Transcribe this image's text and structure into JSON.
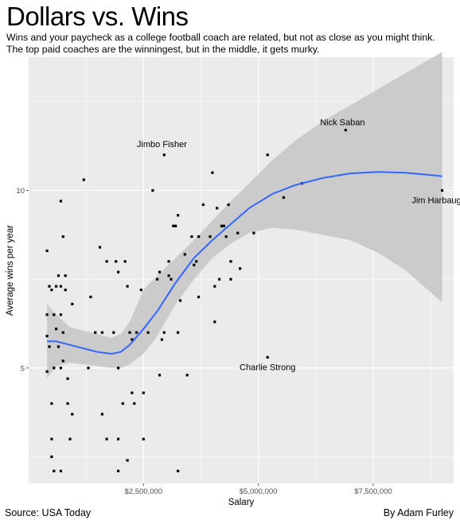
{
  "header": {
    "title": "Dollars vs. Wins",
    "subtitle_line1": "Wins and your paycheck as a college football coach are related, but not as close as you might think.",
    "subtitle_line2": "The top paid coaches are the winningest, but in the middle, it gets murky."
  },
  "footer": {
    "source": "Source: USA Today",
    "byline": "By Adam Furley"
  },
  "colors": {
    "panel": "#ebebeb",
    "grid": "#ffffff",
    "point": "#000000",
    "smooth_line": "#3366ff",
    "ribbon": "#c6c6c6"
  },
  "chart_data": {
    "type": "scatter",
    "xlabel": "Salary",
    "ylabel": "Average wins per year",
    "xlim": [
      0,
      9250000
    ],
    "ylim": [
      1.75,
      13.75
    ],
    "x_ticks": [
      2500000,
      5000000,
      7500000
    ],
    "x_tick_labels": [
      "$2,500,000",
      "$5,000,000",
      "$7,500,000"
    ],
    "y_ticks": [
      5,
      10
    ],
    "y_tick_labels": [
      "5",
      "10"
    ],
    "grid": true,
    "legend": "none",
    "annotations": [
      {
        "label": "Nick Saban",
        "x": 6900000,
        "y": 11.7
      },
      {
        "label": "Jimbo Fisher",
        "x": 2900000,
        "y": 11.0
      },
      {
        "label": "Jim Harbaugh",
        "x": 9000000,
        "y": 10.0
      },
      {
        "label": "Charlie Strong",
        "x": 5200000,
        "y": 5.3
      }
    ],
    "points": [
      {
        "x": 400000,
        "y": 8.3
      },
      {
        "x": 450000,
        "y": 7.3
      },
      {
        "x": 400000,
        "y": 6.5
      },
      {
        "x": 400000,
        "y": 5.9
      },
      {
        "x": 450000,
        "y": 5.6
      },
      {
        "x": 500000,
        "y": 7.2
      },
      {
        "x": 550000,
        "y": 6.5
      },
      {
        "x": 600000,
        "y": 7.3
      },
      {
        "x": 600000,
        "y": 6.1
      },
      {
        "x": 650000,
        "y": 7.6
      },
      {
        "x": 650000,
        "y": 5.6
      },
      {
        "x": 700000,
        "y": 9.7
      },
      {
        "x": 700000,
        "y": 7.3
      },
      {
        "x": 700000,
        "y": 6.5
      },
      {
        "x": 750000,
        "y": 8.7
      },
      {
        "x": 750000,
        "y": 6.0
      },
      {
        "x": 750000,
        "y": 5.2
      },
      {
        "x": 800000,
        "y": 7.6
      },
      {
        "x": 800000,
        "y": 7.2
      },
      {
        "x": 850000,
        "y": 4.7
      },
      {
        "x": 400000,
        "y": 4.9
      },
      {
        "x": 550000,
        "y": 5.0
      },
      {
        "x": 700000,
        "y": 5.0
      },
      {
        "x": 500000,
        "y": 4.0
      },
      {
        "x": 850000,
        "y": 4.0
      },
      {
        "x": 950000,
        "y": 3.7
      },
      {
        "x": 500000,
        "y": 3.0
      },
      {
        "x": 900000,
        "y": 3.0
      },
      {
        "x": 500000,
        "y": 2.5
      },
      {
        "x": 550000,
        "y": 2.1
      },
      {
        "x": 700000,
        "y": 2.1
      },
      {
        "x": 950000,
        "y": 6.8
      },
      {
        "x": 1200000,
        "y": 10.3
      },
      {
        "x": 1300000,
        "y": 5.0
      },
      {
        "x": 1350000,
        "y": 7.0
      },
      {
        "x": 1450000,
        "y": 6.0
      },
      {
        "x": 1550000,
        "y": 8.4
      },
      {
        "x": 1600000,
        "y": 6.0
      },
      {
        "x": 1600000,
        "y": 3.7
      },
      {
        "x": 1700000,
        "y": 8.0
      },
      {
        "x": 1700000,
        "y": 3.0
      },
      {
        "x": 1850000,
        "y": 6.0
      },
      {
        "x": 1900000,
        "y": 8.0
      },
      {
        "x": 1950000,
        "y": 7.7
      },
      {
        "x": 1950000,
        "y": 5.0
      },
      {
        "x": 1950000,
        "y": 3.0
      },
      {
        "x": 1950000,
        "y": 2.1
      },
      {
        "x": 2050000,
        "y": 4.0
      },
      {
        "x": 2100000,
        "y": 8.0
      },
      {
        "x": 2150000,
        "y": 7.3
      },
      {
        "x": 2150000,
        "y": 2.4
      },
      {
        "x": 2200000,
        "y": 6.0
      },
      {
        "x": 2250000,
        "y": 5.8
      },
      {
        "x": 2250000,
        "y": 4.3
      },
      {
        "x": 2300000,
        "y": 4.0
      },
      {
        "x": 2350000,
        "y": 6.0
      },
      {
        "x": 2450000,
        "y": 7.2
      },
      {
        "x": 2500000,
        "y": 4.3
      },
      {
        "x": 2500000,
        "y": 3.0
      },
      {
        "x": 2600000,
        "y": 6.0
      },
      {
        "x": 2700000,
        "y": 10.0
      },
      {
        "x": 2800000,
        "y": 7.5
      },
      {
        "x": 2850000,
        "y": 7.7
      },
      {
        "x": 2900000,
        "y": 5.8
      },
      {
        "x": 2850000,
        "y": 4.8
      },
      {
        "x": 2950000,
        "y": 11.0
      },
      {
        "x": 2950000,
        "y": 6.0
      },
      {
        "x": 3050000,
        "y": 8.0
      },
      {
        "x": 3050000,
        "y": 7.6
      },
      {
        "x": 3100000,
        "y": 7.5
      },
      {
        "x": 3150000,
        "y": 9.0
      },
      {
        "x": 3200000,
        "y": 9.0
      },
      {
        "x": 3250000,
        "y": 9.3
      },
      {
        "x": 3250000,
        "y": 6.0
      },
      {
        "x": 3300000,
        "y": 6.9
      },
      {
        "x": 3250000,
        "y": 2.1
      },
      {
        "x": 3400000,
        "y": 8.2
      },
      {
        "x": 3450000,
        "y": 4.8
      },
      {
        "x": 3550000,
        "y": 8.7
      },
      {
        "x": 3600000,
        "y": 7.9
      },
      {
        "x": 3650000,
        "y": 8.0
      },
      {
        "x": 3700000,
        "y": 8.7
      },
      {
        "x": 3700000,
        "y": 7.0
      },
      {
        "x": 3800000,
        "y": 9.6
      },
      {
        "x": 3950000,
        "y": 8.7
      },
      {
        "x": 4000000,
        "y": 10.5
      },
      {
        "x": 4050000,
        "y": 7.3
      },
      {
        "x": 4050000,
        "y": 6.3
      },
      {
        "x": 4100000,
        "y": 9.5
      },
      {
        "x": 4150000,
        "y": 7.5
      },
      {
        "x": 4200000,
        "y": 9.0
      },
      {
        "x": 4250000,
        "y": 9.0
      },
      {
        "x": 4300000,
        "y": 8.7
      },
      {
        "x": 4350000,
        "y": 9.6
      },
      {
        "x": 4400000,
        "y": 8.0
      },
      {
        "x": 4400000,
        "y": 7.5
      },
      {
        "x": 4550000,
        "y": 8.8
      },
      {
        "x": 4600000,
        "y": 7.8
      },
      {
        "x": 4900000,
        "y": 8.8
      },
      {
        "x": 5200000,
        "y": 11.0
      },
      {
        "x": 5200000,
        "y": 5.3
      },
      {
        "x": 5550000,
        "y": 9.8
      },
      {
        "x": 5950000,
        "y": 10.2
      },
      {
        "x": 6900000,
        "y": 11.7
      },
      {
        "x": 9000000,
        "y": 10.0
      }
    ],
    "smooth": [
      {
        "x": 400000,
        "y": 5.75,
        "lo": 4.7,
        "hi": 6.8
      },
      {
        "x": 600000,
        "y": 5.75,
        "lo": 5.05,
        "hi": 6.5
      },
      {
        "x": 900000,
        "y": 5.65,
        "lo": 5.15,
        "hi": 6.15
      },
      {
        "x": 1200000,
        "y": 5.55,
        "lo": 5.1,
        "hi": 6.05
      },
      {
        "x": 1500000,
        "y": 5.45,
        "lo": 5.05,
        "hi": 5.95
      },
      {
        "x": 1800000,
        "y": 5.4,
        "lo": 5.0,
        "hi": 5.85
      },
      {
        "x": 2000000,
        "y": 5.45,
        "lo": 5.0,
        "hi": 5.95
      },
      {
        "x": 2200000,
        "y": 5.65,
        "lo": 5.1,
        "hi": 6.3
      },
      {
        "x": 2500000,
        "y": 6.1,
        "lo": 5.4,
        "hi": 7.2
      },
      {
        "x": 2800000,
        "y": 6.6,
        "lo": 5.9,
        "hi": 7.6
      },
      {
        "x": 3200000,
        "y": 7.4,
        "lo": 6.8,
        "hi": 8.1
      },
      {
        "x": 3600000,
        "y": 8.1,
        "lo": 7.5,
        "hi": 8.6
      },
      {
        "x": 4000000,
        "y": 8.6,
        "lo": 8.1,
        "hi": 9.15
      },
      {
        "x": 4400000,
        "y": 9.05,
        "lo": 8.5,
        "hi": 9.7
      },
      {
        "x": 4800000,
        "y": 9.5,
        "lo": 8.8,
        "hi": 10.2
      },
      {
        "x": 5300000,
        "y": 9.9,
        "lo": 8.95,
        "hi": 10.85
      },
      {
        "x": 5800000,
        "y": 10.15,
        "lo": 8.9,
        "hi": 11.4
      },
      {
        "x": 6400000,
        "y": 10.35,
        "lo": 8.75,
        "hi": 11.95
      },
      {
        "x": 7000000,
        "y": 10.48,
        "lo": 8.6,
        "hi": 12.4
      },
      {
        "x": 7600000,
        "y": 10.52,
        "lo": 8.25,
        "hi": 12.85
      },
      {
        "x": 8200000,
        "y": 10.5,
        "lo": 7.75,
        "hi": 13.3
      },
      {
        "x": 8600000,
        "y": 10.45,
        "lo": 7.3,
        "hi": 13.6
      },
      {
        "x": 9000000,
        "y": 10.4,
        "lo": 6.85,
        "hi": 13.9
      }
    ]
  }
}
